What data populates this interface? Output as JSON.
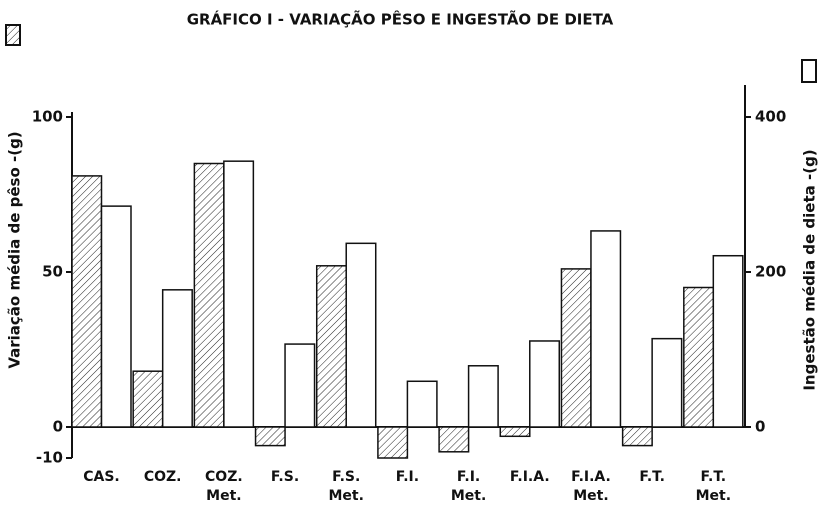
{
  "chart_data": {
    "type": "bar",
    "title": "GRÁFICO I - VARIAÇÃO PÊSO E INGESTÃO DE DIETA",
    "ylabel": "Variação média de pêso -(g)",
    "y2label": "Ingestão média de dieta -(g)",
    "categories": [
      "CAS.",
      "COZ.",
      "COZ. Met.",
      "F.S.",
      "F.S. Met.",
      "F.I.",
      "F.I. Met.",
      "F.I.A.",
      "F.I.A. Met.",
      "F.T.",
      "F.T. Met."
    ],
    "series": [
      {
        "color": "hatch",
        "axis": "y",
        "values": [
          81,
          18,
          85,
          -6,
          52,
          -10,
          -8,
          -3,
          51,
          -6,
          45
        ]
      },
      {
        "color": "#ffffff",
        "axis": "y2",
        "values": [
          285,
          177,
          343,
          107,
          237,
          59,
          79,
          111,
          253,
          114,
          221
        ]
      }
    ],
    "ylim": [
      -10,
      100
    ],
    "yticks": [
      -10,
      0,
      50,
      100
    ],
    "y2lim": [
      0,
      400
    ],
    "y2ticks": [
      0,
      200,
      400
    ]
  }
}
